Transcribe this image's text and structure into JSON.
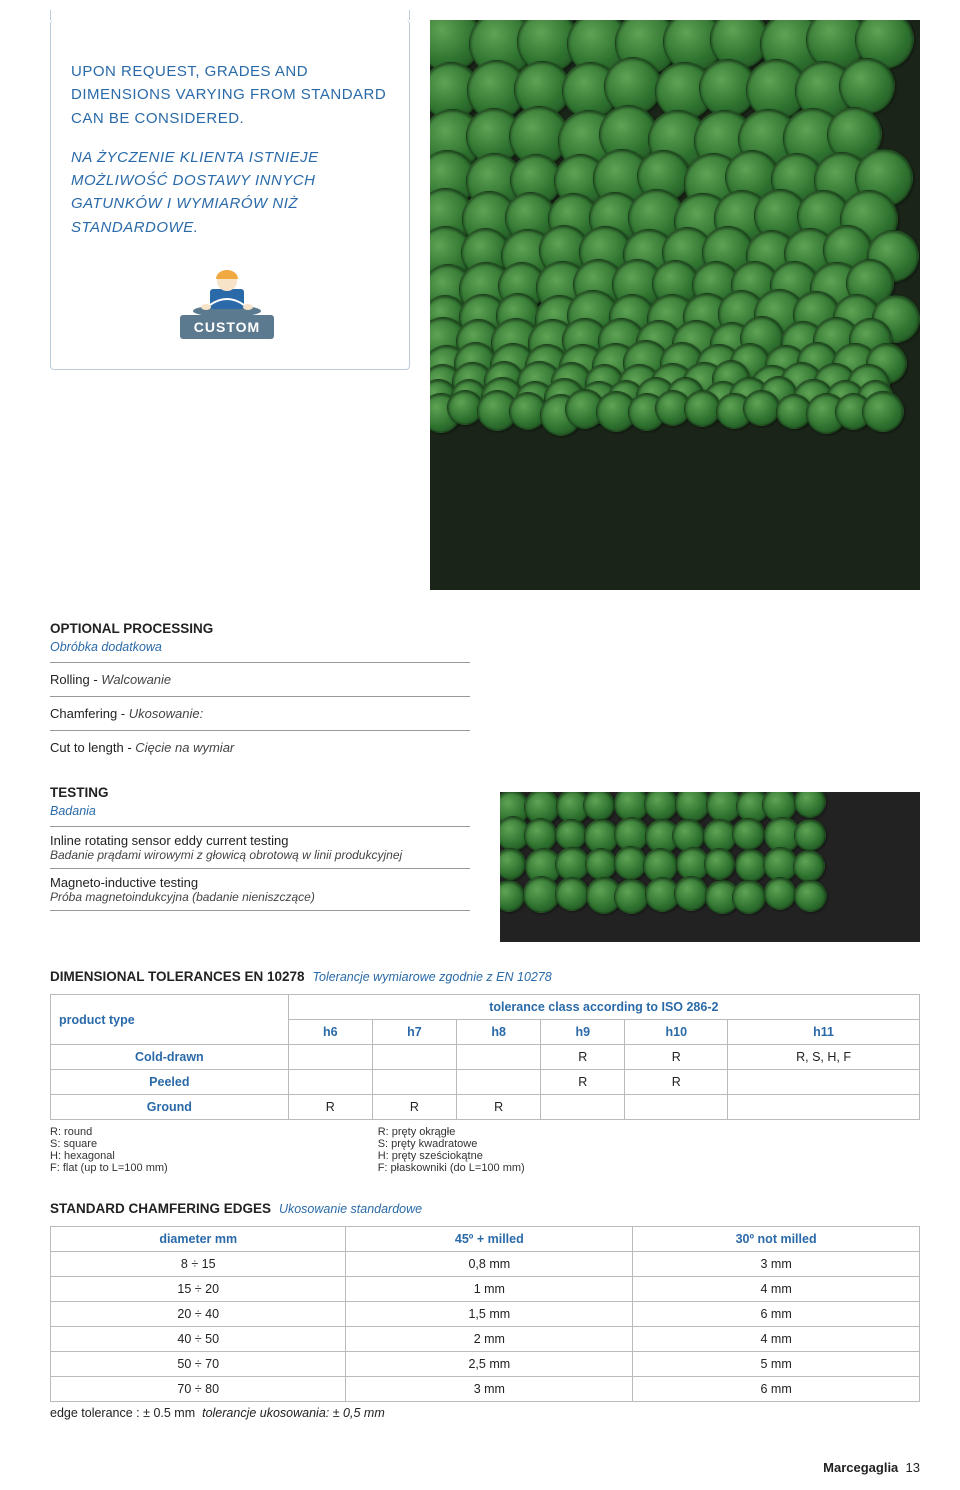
{
  "intro": {
    "en": "Upon request, grades and dimensions varying from standard can be considered.",
    "pl": "Na życzenie klienta istnieje możliwość dostawy innych gatunków i wymiarów niż standardowe.",
    "badge_label": "CUSTOM"
  },
  "product_image": {
    "background_color": "#1a2418",
    "bar_colors": [
      "#5fa355",
      "#2f7330",
      "#1d4a1f"
    ]
  },
  "optional_processing": {
    "title": "OPTIONAL PROCESSING",
    "subtitle": "Obróbka dodatkowa",
    "rows": [
      {
        "en": "Rolling - ",
        "pl": "Walcowanie"
      },
      {
        "en": "Chamfering - ",
        "pl": "Ukosowanie:"
      },
      {
        "en": "Cut to length - ",
        "pl": "Cięcie na wymiar"
      }
    ]
  },
  "testing": {
    "title": "TESTING",
    "subtitle": "Badania",
    "items": [
      {
        "en": "Inline rotating sensor eddy current testing",
        "pl": "Badanie prądami wirowymi z głowicą obrotową w linii produkcyjnej"
      },
      {
        "en": "Magneto-inductive testing",
        "pl": "Próba magnetoindukcyjna (badanie nieniszczące)"
      }
    ]
  },
  "dimensional": {
    "title": "DIMENSIONAL TOLERANCES EN 10278",
    "subtitle": "Tolerancje wymiarowe zgodnie z EN 10278",
    "col1_label": "product type",
    "span_label": "tolerance class according to ISO 286-2",
    "classes": [
      "h6",
      "h7",
      "h8",
      "h9",
      "h10",
      "h11"
    ],
    "rows": [
      {
        "label": "Cold-drawn",
        "cells": [
          "",
          "",
          "",
          "R",
          "R",
          "R, S, H, F"
        ]
      },
      {
        "label": "Peeled",
        "cells": [
          "",
          "",
          "",
          "R",
          "R",
          ""
        ]
      },
      {
        "label": "Ground",
        "cells": [
          "R",
          "R",
          "R",
          "",
          "",
          ""
        ]
      }
    ],
    "legend_en": [
      "R: round",
      "S: square",
      "H: hexagonal",
      "F: flat (up to L=100 mm)"
    ],
    "legend_pl": [
      "R: pręty okrągłe",
      "S: pręty kwadratowe",
      "H: pręty sześciokątne",
      "F: płaskowniki (do L=100 mm)"
    ]
  },
  "chamfer": {
    "title": "STANDARD CHAMFERING EDGES",
    "subtitle": "Ukosowanie standardowe",
    "headers": [
      "diameter mm",
      "45º + milled",
      "30º not milled"
    ],
    "rows": [
      [
        "8 ÷ 15",
        "0,8 mm",
        "3 mm"
      ],
      [
        "15 ÷ 20",
        "1 mm",
        "4 mm"
      ],
      [
        "20 ÷ 40",
        "1,5 mm",
        "6 mm"
      ],
      [
        "40 ÷ 50",
        "2 mm",
        "4 mm"
      ],
      [
        "50 ÷ 70",
        "2,5 mm",
        "5 mm"
      ],
      [
        "70 ÷ 80",
        "3 mm",
        "6 mm"
      ]
    ],
    "edge_tol_en": "edge tolerance : ± 0.5 mm",
    "edge_tol_pl": "tolerancje ukosowania: ± 0,5 mm"
  },
  "footer": {
    "brand": "Marcegaglia",
    "page": "13"
  }
}
